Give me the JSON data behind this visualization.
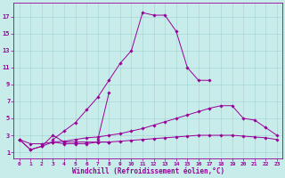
{
  "bg_color": "#c8ecea",
  "line_color": "#990099",
  "grid_color": "#a8d8d4",
  "xlabel": "Windchill (Refroidissement éolien,°C)",
  "yticks": [
    1,
    3,
    5,
    7,
    9,
    11,
    13,
    15,
    17
  ],
  "xticks": [
    0,
    1,
    2,
    3,
    4,
    5,
    6,
    7,
    8,
    9,
    10,
    11,
    12,
    13,
    14,
    15,
    16,
    17,
    18,
    19,
    20,
    21,
    22,
    23
  ],
  "xlim": [
    -0.5,
    23.5
  ],
  "ylim": [
    0.3,
    18.7
  ],
  "series": [
    {
      "x": [
        3,
        4,
        5,
        6,
        7,
        8,
        9,
        10,
        11,
        12,
        13,
        14,
        15,
        16,
        17
      ],
      "y": [
        2.5,
        3.5,
        4.5,
        6.0,
        7.5,
        9.5,
        11.5,
        13.0,
        17.5,
        17.2,
        17.2,
        15.3,
        11.0,
        9.5,
        9.5
      ]
    },
    {
      "x": [
        7,
        8
      ],
      "y": [
        2.5,
        8.0
      ]
    },
    {
      "x": [
        0,
        1,
        2,
        3,
        4,
        5,
        6,
        7,
        8,
        9,
        10,
        11,
        12,
        13,
        14,
        15,
        16,
        17,
        18,
        19,
        20,
        21,
        22,
        23
      ],
      "y": [
        2.5,
        2.0,
        2.0,
        2.2,
        2.3,
        2.5,
        2.7,
        2.8,
        3.0,
        3.2,
        3.5,
        3.8,
        4.2,
        4.6,
        5.0,
        5.4,
        5.8,
        6.2,
        6.5,
        6.5,
        5.0,
        4.8,
        3.9,
        3.0
      ]
    },
    {
      "x": [
        0,
        1,
        2,
        3,
        4,
        5,
        6,
        7,
        8,
        9,
        10,
        11,
        12,
        13,
        14,
        15,
        16,
        17,
        18,
        19,
        20,
        21,
        22,
        23
      ],
      "y": [
        2.5,
        1.3,
        1.7,
        2.2,
        2.0,
        2.0,
        2.0,
        2.2,
        2.2,
        2.3,
        2.4,
        2.5,
        2.6,
        2.7,
        2.8,
        2.9,
        3.0,
        3.0,
        3.0,
        3.0,
        2.9,
        2.8,
        2.7,
        2.5
      ]
    },
    {
      "x": [
        0,
        1,
        2,
        3,
        4,
        5,
        6,
        7,
        8
      ],
      "y": [
        2.5,
        1.3,
        1.7,
        3.0,
        2.2,
        2.2,
        2.2,
        2.2,
        2.2
      ]
    }
  ]
}
